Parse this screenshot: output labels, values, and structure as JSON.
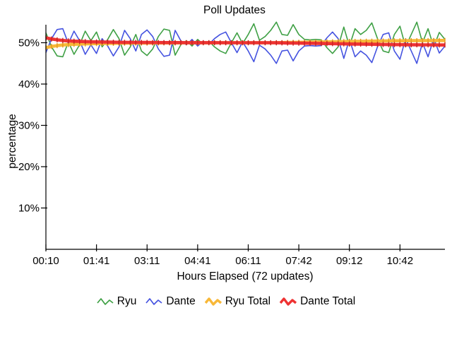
{
  "title": "Poll Updates",
  "axes": {
    "xlabel": "Hours Elapsed (72 updates)",
    "ylabel": "percentage",
    "x_ticks": [
      {
        "label": "00:10",
        "update": 1
      },
      {
        "label": "01:41",
        "update": 10
      },
      {
        "label": "03:11",
        "update": 19
      },
      {
        "label": "04:41",
        "update": 28
      },
      {
        "label": "06:11",
        "update": 37
      },
      {
        "label": "07:42",
        "update": 46
      },
      {
        "label": "09:12",
        "update": 55
      },
      {
        "label": "10:42",
        "update": 64
      }
    ],
    "y_ticks": [
      {
        "label": "10%",
        "value": 10
      },
      {
        "label": "20%",
        "value": 20
      },
      {
        "label": "30%",
        "value": 30
      },
      {
        "label": "40%",
        "value": 40
      },
      {
        "label": "50%",
        "value": 50
      }
    ]
  },
  "chart_data": {
    "type": "line",
    "title": "Poll Updates",
    "xlabel": "Hours Elapsed (72 updates)",
    "ylabel": "percentage",
    "x_unit": "poll update (every ~10 minutes)",
    "x_count": 72,
    "ylim": [
      0,
      54.5
    ],
    "grid": false,
    "legend_position": "bottom",
    "series": [
      {
        "name": "Ryu",
        "color": "#3fa045",
        "width": 1.6,
        "values": [
          52.4,
          49.0,
          46.8,
          46.6,
          50.2,
          47.2,
          49.5,
          52.8,
          50.5,
          52.6,
          49.0,
          50.8,
          53.2,
          51.0,
          47.0,
          49.0,
          52.0,
          48.0,
          46.9,
          48.5,
          51.5,
          53.3,
          53.0,
          47.0,
          49.5,
          50.5,
          49.2,
          50.8,
          49.6,
          50.4,
          49.0,
          48.0,
          47.4,
          50.0,
          52.4,
          49.8,
          52.0,
          54.6,
          50.6,
          51.5,
          53.0,
          55.0,
          52.0,
          51.8,
          54.4,
          52.0,
          50.8,
          50.7,
          50.8,
          50.7,
          48.8,
          47.4,
          49.0,
          53.8,
          49.2,
          53.4,
          52.0,
          53.0,
          54.8,
          51.0,
          48.0,
          47.6,
          52.0,
          54.0,
          49.0,
          52.0,
          55.0,
          50.0,
          53.4,
          49.0,
          52.5,
          50.8
        ]
      },
      {
        "name": "Dante",
        "color": "#4553e0",
        "width": 1.6,
        "values": [
          47.6,
          51.0,
          53.2,
          53.4,
          49.8,
          52.8,
          50.5,
          47.2,
          49.5,
          47.4,
          51.0,
          49.2,
          46.8,
          49.0,
          53.0,
          51.0,
          48.0,
          52.0,
          53.1,
          51.5,
          48.5,
          46.7,
          47.0,
          53.0,
          50.5,
          49.5,
          50.8,
          49.2,
          50.4,
          49.6,
          51.0,
          52.0,
          52.6,
          50.0,
          47.6,
          50.2,
          48.0,
          45.4,
          49.4,
          48.5,
          47.0,
          45.0,
          48.0,
          48.2,
          45.6,
          48.0,
          49.2,
          49.3,
          49.2,
          49.3,
          51.2,
          52.6,
          51.0,
          46.2,
          50.8,
          46.6,
          48.0,
          47.0,
          45.2,
          49.0,
          52.0,
          52.4,
          48.0,
          46.0,
          51.0,
          48.0,
          45.0,
          50.0,
          46.6,
          51.0,
          47.5,
          49.2
        ]
      },
      {
        "name": "Ryu Total",
        "color": "#f8b838",
        "width": 4.6,
        "marker_color": "#e09a20",
        "values": [
          48.8,
          49.1,
          49.3,
          49.45,
          49.55,
          49.62,
          49.68,
          49.73,
          49.77,
          49.8,
          49.83,
          49.85,
          49.87,
          49.89,
          49.9,
          49.91,
          49.92,
          49.93,
          49.94,
          49.95,
          49.95,
          49.96,
          49.96,
          49.97,
          49.97,
          49.98,
          49.98,
          49.98,
          49.99,
          49.99,
          49.99,
          50.0,
          50.0,
          50.0,
          50.0,
          50.0,
          50.0,
          50.0,
          50.0,
          50.0,
          50.0,
          50.02,
          50.04,
          50.06,
          50.08,
          50.1,
          50.12,
          50.14,
          50.16,
          50.18,
          50.2,
          50.22,
          50.25,
          50.27,
          50.3,
          50.32,
          50.34,
          50.36,
          50.38,
          50.4,
          50.42,
          50.44,
          50.46,
          50.47,
          50.48,
          50.49,
          50.5,
          50.51,
          50.52,
          50.53,
          50.54,
          50.55
        ]
      },
      {
        "name": "Dante Total",
        "color": "#ee3232",
        "width": 4.6,
        "marker_color": "#c62424",
        "values": [
          51.2,
          50.9,
          50.7,
          50.55,
          50.45,
          50.38,
          50.32,
          50.27,
          50.23,
          50.2,
          50.17,
          50.15,
          50.13,
          50.11,
          50.1,
          50.09,
          50.08,
          50.07,
          50.06,
          50.05,
          50.05,
          50.04,
          50.04,
          50.03,
          50.03,
          50.02,
          50.02,
          50.02,
          50.01,
          50.01,
          50.01,
          50.0,
          50.0,
          50.0,
          50.0,
          50.0,
          50.0,
          50.0,
          50.0,
          50.0,
          50.0,
          49.98,
          49.96,
          49.94,
          49.92,
          49.9,
          49.88,
          49.86,
          49.84,
          49.82,
          49.8,
          49.78,
          49.75,
          49.73,
          49.7,
          49.68,
          49.66,
          49.64,
          49.62,
          49.6,
          49.58,
          49.56,
          49.54,
          49.53,
          49.52,
          49.51,
          49.5,
          49.49,
          49.48,
          49.47,
          49.46,
          49.45
        ]
      }
    ]
  }
}
